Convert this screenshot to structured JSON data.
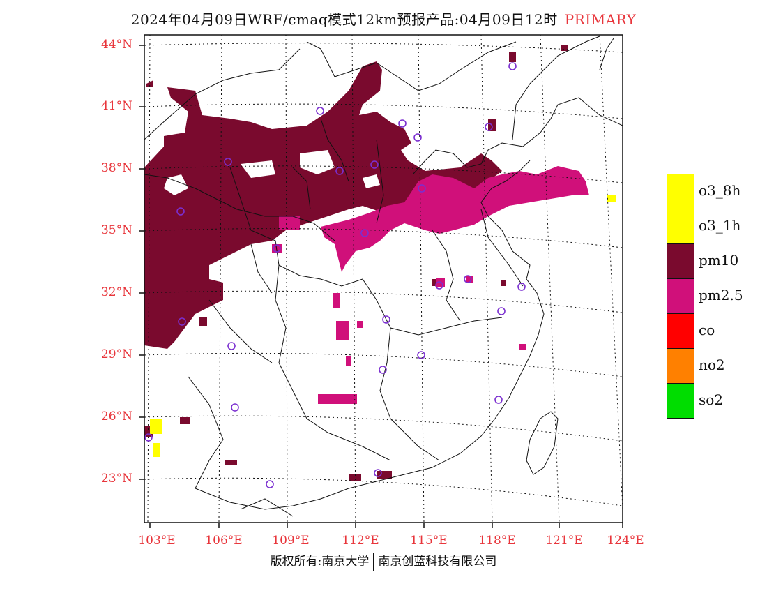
{
  "title": {
    "main": "2024年04月09日WRF/cmaq模式12km预报产品:04月09日12时",
    "tag": "PRIMARY"
  },
  "map": {
    "lat_labels": [
      "44°N",
      "41°N",
      "38°N",
      "35°N",
      "32°N",
      "29°N",
      "26°N",
      "23°N"
    ],
    "lon_labels": [
      "103°E",
      "106°E",
      "109°E",
      "112°E",
      "115°E",
      "118°E",
      "121°E",
      "124°E"
    ],
    "label_color": "#e8353b"
  },
  "legend": [
    {
      "label": "o3_8h",
      "color": "#ffff00"
    },
    {
      "label": "o3_1h",
      "color": "#ffff00"
    },
    {
      "label": "pm10",
      "color": "#7a0a2e"
    },
    {
      "label": "pm2.5",
      "color": "#d0107a"
    },
    {
      "label": "co",
      "color": "#ff0000"
    },
    {
      "label": "no2",
      "color": "#ff8000"
    },
    {
      "label": "so2",
      "color": "#00dd00"
    }
  ],
  "footer": {
    "left": "版权所有:南京大学",
    "right": "南京创蓝科技有限公司"
  }
}
